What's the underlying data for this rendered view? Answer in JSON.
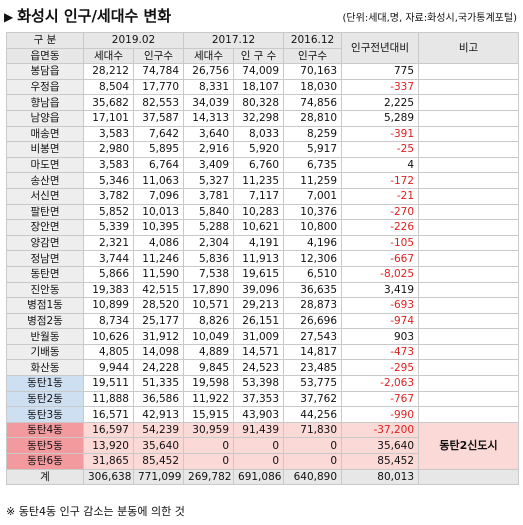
{
  "title": "화성시 인구/세대수 변화",
  "source": "(단위:세대,명, 자료:화성시,국가통계포털)",
  "header": {
    "col1_top": "구 분",
    "col1_bottom": "읍면동",
    "p2019": "2019.02",
    "p2017": "2017.12",
    "p2016": "2016.12",
    "households": "세대수",
    "population": "인구수",
    "population_spaced": "인 구 수",
    "change": "인구전년대비",
    "note": "비고"
  },
  "rows": [
    {
      "name": "봉담읍",
      "h19": "28,212",
      "p19": "74,784",
      "h17": "26,756",
      "p17": "74,009",
      "p16": "70,163",
      "chg": "775",
      "neg": false
    },
    {
      "name": "우정읍",
      "h19": "8,504",
      "p19": "17,770",
      "h17": "8,331",
      "p17": "18,107",
      "p16": "18,030",
      "chg": "-337",
      "neg": true
    },
    {
      "name": "향남읍",
      "h19": "35,682",
      "p19": "82,553",
      "h17": "34,039",
      "p17": "80,328",
      "p16": "74,856",
      "chg": "2,225",
      "neg": false
    },
    {
      "name": "남양읍",
      "h19": "17,101",
      "p19": "37,587",
      "h17": "14,313",
      "p17": "32,298",
      "p16": "28,810",
      "chg": "5,289",
      "neg": false
    },
    {
      "name": "매송면",
      "h19": "3,583",
      "p19": "7,642",
      "h17": "3,640",
      "p17": "8,033",
      "p16": "8,259",
      "chg": "-391",
      "neg": true
    },
    {
      "name": "비봉면",
      "h19": "2,980",
      "p19": "5,895",
      "h17": "2,916",
      "p17": "5,920",
      "p16": "5,917",
      "chg": "-25",
      "neg": true
    },
    {
      "name": "마도면",
      "h19": "3,583",
      "p19": "6,764",
      "h17": "3,409",
      "p17": "6,760",
      "p16": "6,735",
      "chg": "4",
      "neg": false
    },
    {
      "name": "송산면",
      "h19": "5,346",
      "p19": "11,063",
      "h17": "5,327",
      "p17": "11,235",
      "p16": "11,259",
      "chg": "-172",
      "neg": true
    },
    {
      "name": "서신면",
      "h19": "3,782",
      "p19": "7,096",
      "h17": "3,781",
      "p17": "7,117",
      "p16": "7,001",
      "chg": "-21",
      "neg": true
    },
    {
      "name": "팔탄면",
      "h19": "5,852",
      "p19": "10,013",
      "h17": "5,840",
      "p17": "10,283",
      "p16": "10,376",
      "chg": "-270",
      "neg": true
    },
    {
      "name": "장안면",
      "h19": "5,339",
      "p19": "10,395",
      "h17": "5,288",
      "p17": "10,621",
      "p16": "10,800",
      "chg": "-226",
      "neg": true
    },
    {
      "name": "양감면",
      "h19": "2,321",
      "p19": "4,086",
      "h17": "2,304",
      "p17": "4,191",
      "p16": "4,196",
      "chg": "-105",
      "neg": true
    },
    {
      "name": "정남면",
      "h19": "3,744",
      "p19": "11,246",
      "h17": "5,836",
      "p17": "11,913",
      "p16": "12,306",
      "chg": "-667",
      "neg": true
    },
    {
      "name": "동탄면",
      "h19": "5,866",
      "p19": "11,590",
      "h17": "7,538",
      "p17": "19,615",
      "p16": "6,510",
      "chg": "-8,025",
      "neg": true
    },
    {
      "name": "진안동",
      "h19": "19,383",
      "p19": "42,515",
      "h17": "17,890",
      "p17": "39,096",
      "p16": "36,635",
      "chg": "3,419",
      "neg": false
    },
    {
      "name": "병점1동",
      "h19": "10,899",
      "p19": "28,520",
      "h17": "10,571",
      "p17": "29,213",
      "p16": "28,873",
      "chg": "-693",
      "neg": true
    },
    {
      "name": "병점2동",
      "h19": "8,734",
      "p19": "25,177",
      "h17": "8,826",
      "p17": "26,151",
      "p16": "26,696",
      "chg": "-974",
      "neg": true
    },
    {
      "name": "반월동",
      "h19": "10,626",
      "p19": "31,912",
      "h17": "10,049",
      "p17": "31,009",
      "p16": "27,543",
      "chg": "903",
      "neg": false
    },
    {
      "name": "기배동",
      "h19": "4,805",
      "p19": "14,098",
      "h17": "4,889",
      "p17": "14,571",
      "p16": "14,817",
      "chg": "-473",
      "neg": true
    },
    {
      "name": "화산동",
      "h19": "9,944",
      "p19": "24,228",
      "h17": "9,845",
      "p17": "24,523",
      "p16": "23,485",
      "chg": "-295",
      "neg": true
    },
    {
      "name": "동탄1동",
      "h19": "19,511",
      "p19": "51,335",
      "h17": "19,598",
      "p17": "53,398",
      "p16": "53,775",
      "chg": "-2,063",
      "neg": true,
      "group": "blue"
    },
    {
      "name": "동탄2동",
      "h19": "11,888",
      "p19": "36,586",
      "h17": "11,922",
      "p17": "37,353",
      "p16": "37,762",
      "chg": "-767",
      "neg": true,
      "group": "blue"
    },
    {
      "name": "동탄3동",
      "h19": "16,571",
      "p19": "42,913",
      "h17": "15,915",
      "p17": "43,903",
      "p16": "44,256",
      "chg": "-990",
      "neg": true,
      "group": "blue"
    },
    {
      "name": "동탄4동",
      "h19": "16,597",
      "p19": "54,239",
      "h17": "30,959",
      "p17": "91,439",
      "p16": "71,830",
      "chg": "-37,200",
      "neg": true,
      "group": "pink"
    },
    {
      "name": "동탄5동",
      "h19": "13,920",
      "p19": "35,640",
      "h17": "0",
      "p17": "0",
      "p16": "0",
      "chg": "35,640",
      "neg": false,
      "group": "pink"
    },
    {
      "name": "동탄6동",
      "h19": "31,865",
      "p19": "85,452",
      "h17": "0",
      "p17": "0",
      "p16": "0",
      "chg": "85,452",
      "neg": false,
      "group": "pink"
    }
  ],
  "pink_note": "동탄2신도시",
  "total": {
    "name": "계",
    "h19": "306,638",
    "p19": "771,099",
    "h17": "269,782",
    "p17": "691,086",
    "p16": "640,890",
    "chg": "80,013"
  },
  "footnote": "※ 동탄4동 인구 감소는 분동에 의한 것"
}
